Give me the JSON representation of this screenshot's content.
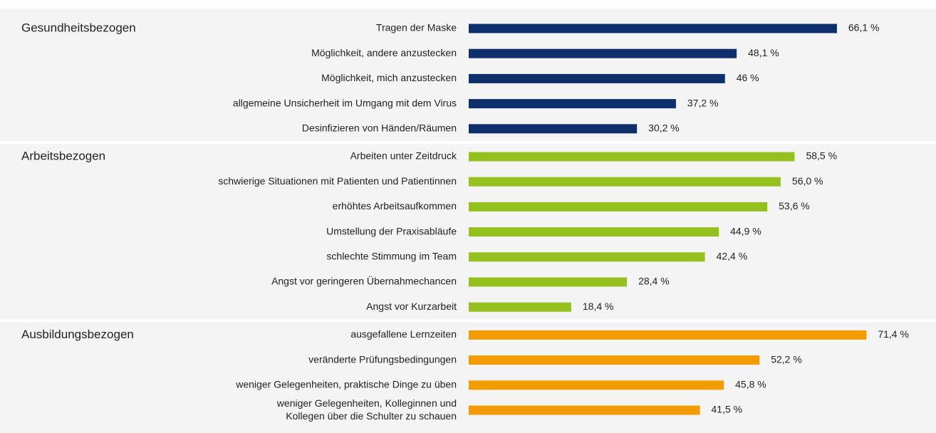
{
  "chart_data": {
    "type": "bar",
    "series": [
      {
        "name": "Gesundheitsbezogen",
        "color": "#0d2f6b",
        "categories": [
          "Tragen der Maske",
          "Möglichkeit, andere anzustecken",
          "Möglichkeit, mich anzustecken",
          "allgemeine Unsicherheit im Umgang mit dem Virus",
          "Desinfizieren von Händen/Räumen"
        ],
        "values": [
          66.1,
          48.1,
          46,
          37.2,
          30.2
        ],
        "value_labels": [
          "66,1 %",
          "48,1 %",
          "46 %",
          "37,2 %",
          "30,2 %"
        ]
      },
      {
        "name": "Arbeitsbezogen",
        "color": "#95c11f",
        "categories": [
          "Arbeiten unter Zeitdruck",
          "schwierige Situationen mit Patienten und Patientinnen",
          "erhöhtes Arbeitsaufkommen",
          "Umstellung der Praxisabläufe",
          "schlechte Stimmung im Team",
          "Angst vor geringeren Übernahmechancen",
          "Angst vor Kurzarbeit"
        ],
        "values": [
          58.5,
          56.0,
          53.6,
          44.9,
          42.4,
          28.4,
          18.4
        ],
        "value_labels": [
          "58,5 %",
          "56,0 %",
          "53,6 %",
          "44,9 %",
          "42,4 %",
          "28,4 %",
          "18,4 %"
        ]
      },
      {
        "name": "Ausbildungsbezogen",
        "color": "#f39c00",
        "categories": [
          "ausgefallene Lernzeiten",
          "veränderte Prüfungsbedingungen",
          "weniger Gelegenheiten, praktische Dinge zu üben",
          "weniger Gelegenheiten, Kolleginnen und\nKollegen über die Schulter zu schauen"
        ],
        "values": [
          71.4,
          52.2,
          45.8,
          41.5
        ],
        "value_labels": [
          "71,4 %",
          "52,2 %",
          "45,8 %",
          "41,5 %"
        ]
      }
    ]
  }
}
